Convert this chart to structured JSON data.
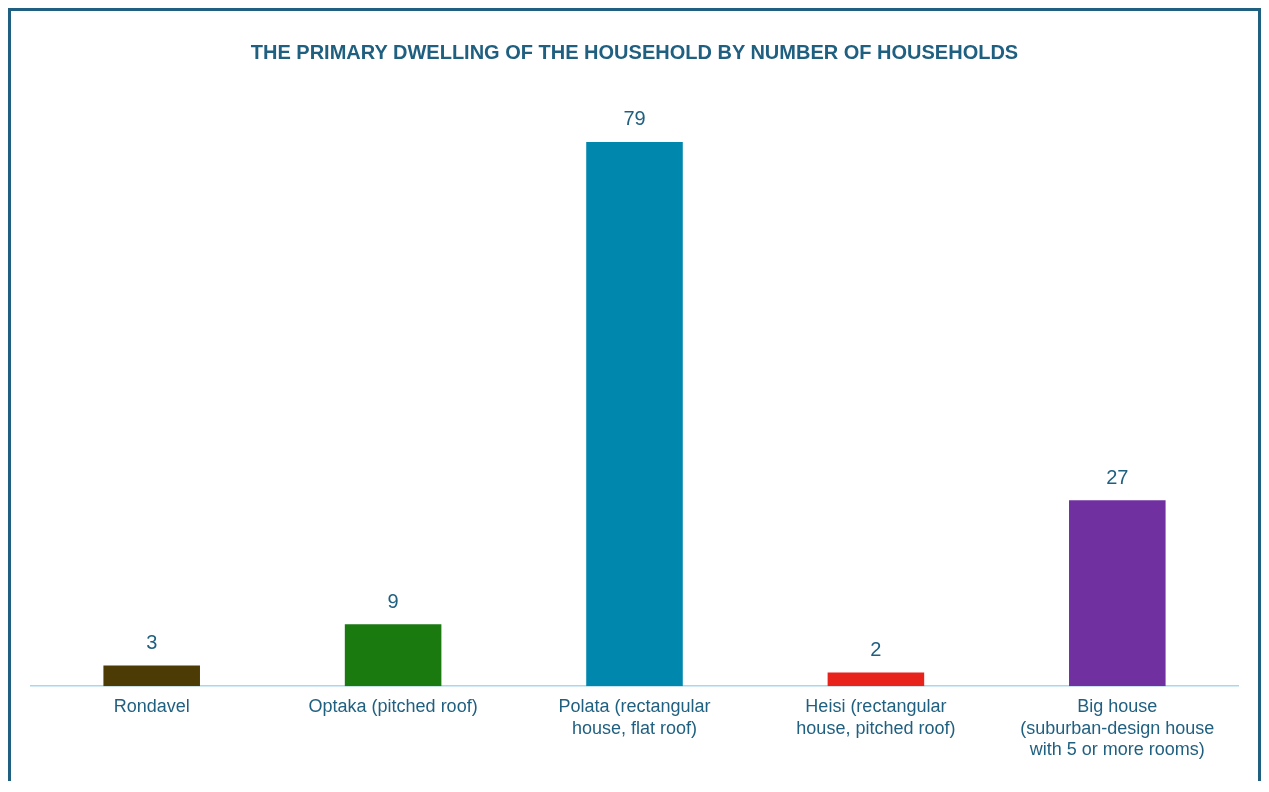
{
  "chart_data": {
    "type": "bar",
    "title": "THE PRIMARY DWELLING OF THE HOUSEHOLD BY NUMBER OF HOUSEHOLDS",
    "categories": [
      "Rondavel",
      "Optaka (pitched roof)",
      "Polata (rectangular house, flat roof)",
      "Heisi (rectangular house, pitched roof)",
      "Big house (suburban-design house with 5 or more rooms)"
    ],
    "values": [
      3,
      9,
      79,
      2,
      27
    ],
    "colors": [
      "#4d3b05",
      "#1a7a10",
      "#0087ad",
      "#e8231c",
      "#7030a0"
    ],
    "data_labels": true,
    "grid": false,
    "legend": false
  }
}
